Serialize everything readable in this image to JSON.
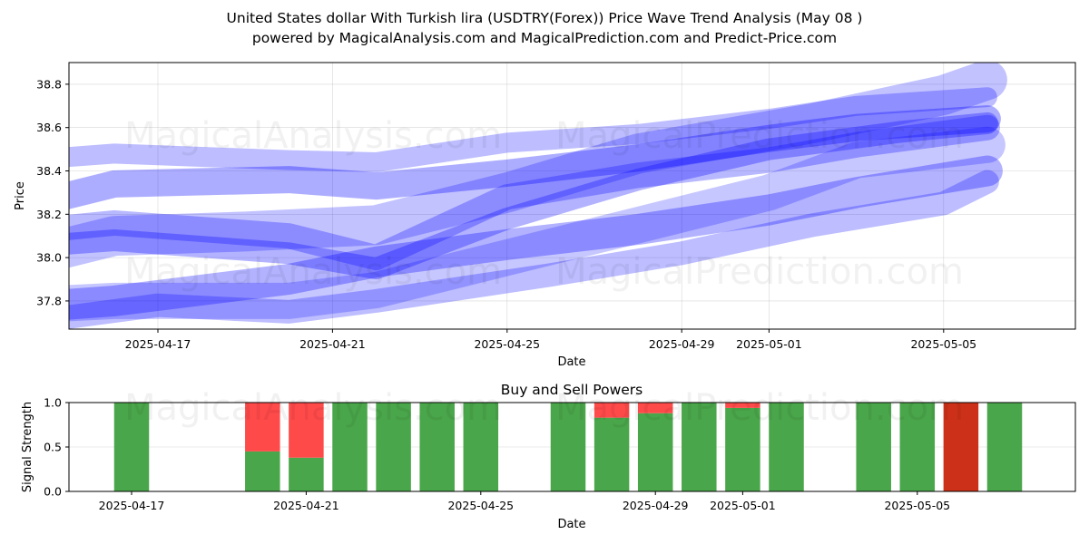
{
  "title": {
    "line1": "United States dollar With Turkish lira (USDTRY(Forex)) Price Wave Trend Analysis (May 08 )",
    "line2": "powered by MagicalAnalysis.com and MagicalPrediction.com and Predict-Price.com"
  },
  "watermarks": {
    "left": "MagicalAnalysis.com",
    "right": "MagicalPrediction.com"
  },
  "chart_data": [
    {
      "type": "area",
      "title": "United States dollar With Turkish lira (USDTRY(Forex)) Price Wave Trend Analysis (May 08 )",
      "xlabel": "Date",
      "ylabel": "Price",
      "xlim": [
        "2025-04-14",
        "2025-05-07"
      ],
      "ylim": [
        37.67,
        38.9
      ],
      "x_ticks": [
        "2025-04-17",
        "2025-04-21",
        "2025-04-25",
        "2025-04-29",
        "2025-05-01",
        "2025-05-05"
      ],
      "y_ticks": [
        37.8,
        38.0,
        38.2,
        38.4,
        38.6,
        38.8
      ],
      "grid": true,
      "color": "#0000ff",
      "series": [
        {
          "x": [
            "2025-04-14",
            "2025-04-16",
            "2025-04-20",
            "2025-04-22",
            "2025-04-25",
            "2025-04-28",
            "2025-05-01",
            "2025-05-03",
            "2025-05-06"
          ],
          "y": [
            38.24,
            38.34,
            38.36,
            38.33,
            38.39,
            38.46,
            38.55,
            38.6,
            38.64
          ]
        },
        {
          "x": [
            "2025-04-14",
            "2025-04-16",
            "2025-04-20",
            "2025-04-22",
            "2025-04-25",
            "2025-04-28",
            "2025-05-01",
            "2025-05-03",
            "2025-05-06"
          ],
          "y": [
            38.45,
            38.48,
            38.45,
            38.44,
            38.53,
            38.57,
            38.64,
            38.7,
            38.74
          ]
        },
        {
          "x": [
            "2025-04-14",
            "2025-04-16",
            "2025-04-20",
            "2025-04-22",
            "2025-04-25",
            "2025-04-28",
            "2025-05-01",
            "2025-05-03",
            "2025-05-06"
          ],
          "y": [
            37.77,
            37.8,
            37.9,
            37.98,
            38.06,
            38.13,
            38.22,
            38.3,
            38.4
          ]
        },
        {
          "x": [
            "2025-04-14",
            "2025-04-16",
            "2025-04-20",
            "2025-04-22",
            "2025-04-25",
            "2025-04-28",
            "2025-05-01",
            "2025-05-03",
            "2025-05-06"
          ],
          "y": [
            38.12,
            38.16,
            38.1,
            38.0,
            38.28,
            38.38,
            38.45,
            38.52,
            38.6
          ]
        },
        {
          "x": [
            "2025-04-14",
            "2025-04-16",
            "2025-04-20",
            "2025-04-22",
            "2025-04-25",
            "2025-04-28",
            "2025-05-01",
            "2025-05-03",
            "2025-05-06"
          ],
          "y": [
            37.78,
            37.8,
            37.8,
            37.85,
            38.0,
            38.15,
            38.3,
            38.45,
            38.52
          ]
        },
        {
          "x": [
            "2025-04-14",
            "2025-04-17",
            "2025-04-20",
            "2025-04-22",
            "2025-04-26",
            "2025-04-29",
            "2025-05-02",
            "2025-05-05",
            "2025-05-06"
          ],
          "y": [
            37.7,
            37.78,
            37.75,
            37.8,
            37.92,
            38.02,
            38.15,
            38.25,
            38.35
          ]
        },
        {
          "x": [
            "2025-04-14",
            "2025-04-16",
            "2025-04-19",
            "2025-04-22",
            "2025-04-25",
            "2025-04-28",
            "2025-05-02",
            "2025-05-05",
            "2025-05-06"
          ],
          "y": [
            38.0,
            38.1,
            38.12,
            38.15,
            38.3,
            38.48,
            38.62,
            38.75,
            38.82
          ]
        },
        {
          "x": [
            "2025-04-14",
            "2025-04-16",
            "2025-04-20",
            "2025-04-22",
            "2025-04-25",
            "2025-04-28",
            "2025-05-01",
            "2025-05-04",
            "2025-05-06"
          ],
          "y": [
            38.05,
            38.08,
            38.02,
            37.95,
            38.18,
            38.36,
            38.5,
            38.58,
            38.62
          ]
        }
      ]
    },
    {
      "type": "bar",
      "title": "Buy and Sell Powers",
      "xlabel": "Date",
      "ylabel": "Signal Strength",
      "ylim": [
        0,
        1.0
      ],
      "y_ticks": [
        0.0,
        0.5,
        1.0
      ],
      "x_ticks": [
        "2025-04-17",
        "2025-04-21",
        "2025-04-25",
        "2025-04-29",
        "2025-05-01",
        "2025-05-05"
      ],
      "grid": true,
      "colors": {
        "buy": "#4aa64a",
        "sell": "#ff4a4a",
        "strong_sell": "#cc3018"
      },
      "categories": [
        "2025-04-17",
        "2025-04-20",
        "2025-04-21",
        "2025-04-22",
        "2025-04-23",
        "2025-04-24",
        "2025-04-25",
        "2025-04-27",
        "2025-04-28",
        "2025-04-29",
        "2025-04-30",
        "2025-05-01",
        "2025-05-02",
        "2025-05-04",
        "2025-05-05",
        "2025-05-06",
        "2025-05-07"
      ],
      "series": [
        {
          "name": "buy",
          "values": [
            1.0,
            0.45,
            0.38,
            1.0,
            1.0,
            1.0,
            1.0,
            1.0,
            0.83,
            0.88,
            1.0,
            0.94,
            1.0,
            1.0,
            1.0,
            0.0,
            1.0
          ]
        },
        {
          "name": "sell",
          "values": [
            0.0,
            0.55,
            0.62,
            0.0,
            0.0,
            0.0,
            0.0,
            0.0,
            0.17,
            0.12,
            0.0,
            0.06,
            0.0,
            0.0,
            0.0,
            1.0,
            0.0
          ]
        }
      ]
    }
  ]
}
